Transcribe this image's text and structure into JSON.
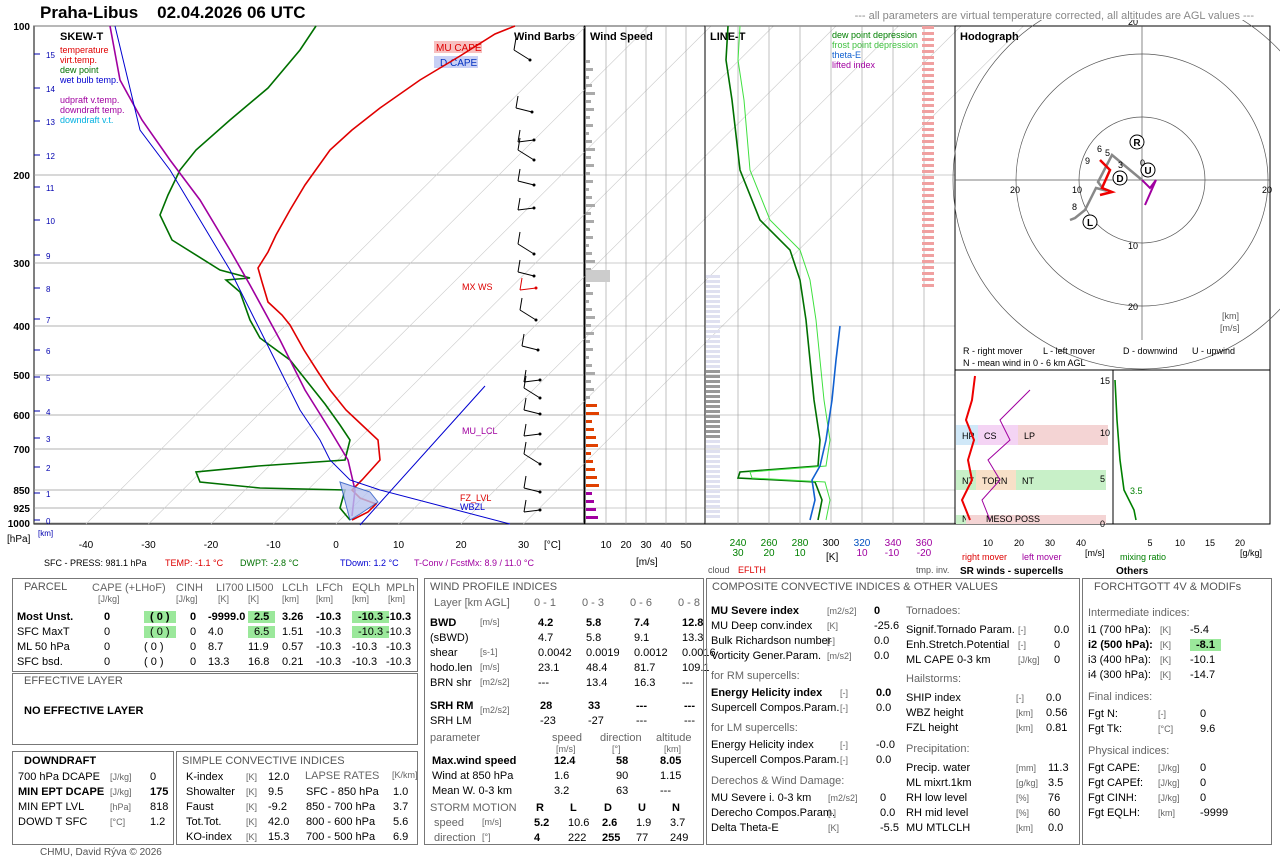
{
  "header": {
    "station": "Praha-Libus",
    "time": "02.04.2026 06 UTC",
    "note": "--- all parameters are virtual temperature corrected, all altitudes are AGL values ---"
  },
  "skewt": {
    "title": "SKEW-T",
    "legend": [
      {
        "label": "temperature",
        "color": "#e00000"
      },
      {
        "label": "virt.temp.",
        "color": "#e00000"
      },
      {
        "label": "dew point",
        "color": "#007000"
      },
      {
        "label": "wet bulb temp.",
        "color": "#0000d0"
      },
      {
        "label": "udpraft v.temp.",
        "color": "#a000a0"
      },
      {
        "label": "downdraft temp.",
        "color": "#a000a0"
      },
      {
        "label": "downdraft v.t.",
        "color": "#00b0e0"
      }
    ],
    "mu_cape": "MU CAPE",
    "d_cape": "D CAPE",
    "mxws": "MX WS",
    "mu_lcl": "MU_LCL",
    "fz_lvl": "FZ_LVL",
    "wbzl": "WBZL",
    "p_ticks": [
      "100",
      "200",
      "300",
      "400",
      "500",
      "600",
      "700",
      "850",
      "925",
      "1000"
    ],
    "km_ticks": [
      "0",
      "1",
      "2",
      "3",
      "4",
      "5",
      "6",
      "7",
      "8",
      "9",
      "10",
      "11",
      "12",
      "13",
      "14",
      "15"
    ],
    "t_ticks": [
      "-40",
      "-30",
      "-20",
      "-10",
      "0",
      "10",
      "20",
      "30"
    ],
    "t_unit": "[°C]",
    "p_unit": "[hPa]",
    "km_unit": "[km]",
    "sfc": {
      "press": "SFC - PRESS: 981.1 hPa",
      "temp": "TEMP: -1.1 °C",
      "dwpt": "DWPT: -2.8 °C",
      "tdown": "TDown: 1.2 °C",
      "tconv": "T-Conv / FcstMx: 8.9 / 11.0 °C"
    }
  },
  "windbarbs": {
    "title": "Wind Barbs"
  },
  "windspeed": {
    "title": "Wind Speed",
    "ticks": [
      "10",
      "20",
      "30",
      "40",
      "50"
    ],
    "unit": "[m/s]"
  },
  "linet": {
    "title": "LINE-T",
    "legend": [
      "dew point depression",
      "frost point depression",
      "theta-E",
      "lifted index"
    ],
    "ticks_top": [
      "240",
      "260",
      "280",
      "300",
      "320",
      "340",
      "360"
    ],
    "ticks_bot": [
      "30",
      "20",
      "10",
      "10",
      "-10",
      "-20"
    ],
    "unit": "[K]",
    "cloud": "cloud",
    "eflth": "EFLTH",
    "tmpinv": "tmp. inv."
  },
  "hodograph": {
    "title": "Hodograph",
    "rings": [
      "20",
      "10",
      "10",
      "20"
    ],
    "labels": [
      "R",
      "L",
      "D",
      "U"
    ],
    "legend1": "R - right mover",
    "legend2": "L - left mover",
    "legend3": "D - downwind",
    "legend4": "U - upwind",
    "legend5": "N - mean wind in 0 - 6 km AGL",
    "unit1": "[km]",
    "unit2": "[m/s]",
    "nums": [
      "9",
      "6",
      "5",
      "8",
      "3",
      "0"
    ]
  },
  "srwinds": {
    "title": "SR winds - supercells",
    "zones": [
      "HP",
      "CS",
      "LP",
      "NT",
      "TORN",
      "NT",
      "NM",
      "MESO POSS"
    ],
    "ticks": [
      "10",
      "20",
      "30",
      "40"
    ],
    "unit": "[m/s]",
    "right": "right mover",
    "left": "left mover",
    "yticks": [
      "0",
      "5",
      "10",
      "15"
    ]
  },
  "others": {
    "title": "Others",
    "ticks": [
      "5",
      "10",
      "15",
      "20"
    ],
    "unit": "[g/kg]",
    "mixing": "mixing ratio",
    "val": "3.5"
  },
  "parcel": {
    "title": "PARCEL",
    "headers": [
      "CAPE (+LHoF)",
      "CINH",
      "LI700",
      "LI500",
      "LCLh",
      "LFCh",
      "EQLh",
      "MPLh"
    ],
    "units": [
      "[J/kg]",
      "[J/kg]",
      "[K]",
      "[K]",
      "[km]",
      "[km]",
      "[km]",
      "[km]"
    ],
    "rows": [
      {
        "name": "Most Unst.",
        "v": [
          "0",
          "( 0 )",
          "0",
          "-9999.0",
          "2.5",
          "3.26",
          "-10.3",
          "-10.3",
          "-10.3"
        ]
      },
      {
        "name": "SFC MaxT",
        "v": [
          "0",
          "( 0 )",
          "0",
          "4.0",
          "6.5",
          "1.51",
          "-10.3",
          "-10.3",
          "-10.3"
        ]
      },
      {
        "name": "ML 50 hPa",
        "v": [
          "0",
          "( 0 )",
          "0",
          "8.7",
          "11.9",
          "0.57",
          "-10.3",
          "-10.3",
          "-10.3"
        ]
      },
      {
        "name": "SFC bsd.",
        "v": [
          "0",
          "( 0 )",
          "0",
          "13.3",
          "16.8",
          "0.21",
          "-10.3",
          "-10.3",
          "-10.3"
        ]
      }
    ]
  },
  "effective": {
    "title": "EFFECTIVE LAYER",
    "value": "NO EFFECTIVE LAYER"
  },
  "downdraft": {
    "title": "DOWNDRAFT",
    "rows": [
      {
        "n": "700 hPa DCAPE",
        "u": "[J/kg]",
        "v": "0"
      },
      {
        "n": "MIN EPT DCAPE",
        "u": "[J/kg]",
        "v": "175"
      },
      {
        "n": "MIN EPT LVL",
        "u": "[hPa]",
        "v": "818"
      },
      {
        "n": "DOWD T SFC",
        "u": "[°C]",
        "v": "1.2"
      }
    ]
  },
  "simple": {
    "title": "SIMPLE CONVECTIVE INDICES",
    "rows": [
      {
        "n": "K-index",
        "u": "[K]",
        "v": "12.0"
      },
      {
        "n": "Showalter",
        "u": "[K]",
        "v": "9.5"
      },
      {
        "n": "Faust",
        "u": "[K]",
        "v": "-9.2"
      },
      {
        "n": "Tot.Tot.",
        "u": "[K]",
        "v": "42.0"
      },
      {
        "n": "KO-index",
        "u": "[K]",
        "v": "15.3"
      }
    ],
    "lapse_title": "LAPSE RATES",
    "lapse_unit": "[K/km]",
    "lapse": [
      {
        "n": "SFC - 850 hPa",
        "v": "1.0"
      },
      {
        "n": "850 - 700 hPa",
        "v": "3.7"
      },
      {
        "n": "800 - 600 hPa",
        "v": "5.6"
      },
      {
        "n": "700 - 500 hPa",
        "v": "6.9"
      }
    ]
  },
  "windprofile": {
    "title": "WIND PROFILE INDICES",
    "layer": "Layer [km AGL]",
    "cols": [
      "0 - 1",
      "0 - 3",
      "0 - 6",
      "0 - 8"
    ],
    "rows": [
      {
        "n": "BWD",
        "u": "[m/s]",
        "v": [
          "4.2",
          "5.8",
          "7.4",
          "12.8"
        ],
        "b": true
      },
      {
        "n": "(sBWD)",
        "u": "",
        "v": [
          "4.7",
          "5.8",
          "9.1",
          "13.3"
        ]
      },
      {
        "n": "shear",
        "u": "[s-1]",
        "v": [
          "0.0042",
          "0.0019",
          "0.0012",
          "0.0016"
        ]
      },
      {
        "n": "hodo.len",
        "u": "[m/s]",
        "v": [
          "23.1",
          "48.4",
          "81.7",
          "109.1"
        ]
      },
      {
        "n": "BRN shr",
        "u": "[m2/s2]",
        "v": [
          "---",
          "13.4",
          "16.3",
          "---"
        ]
      }
    ],
    "srh": [
      {
        "n": "SRH RM",
        "v": [
          "28",
          "33",
          "---",
          "---"
        ],
        "b": true
      },
      {
        "n": "SRH LM",
        "v": [
          "-23",
          "-27",
          "---",
          "---"
        ]
      }
    ],
    "srh_unit": "[m2/s2]",
    "param_hdr": [
      "parameter",
      "speed",
      "direction",
      "altitude"
    ],
    "param_units": [
      "[m/s]",
      "[°]",
      "[km]"
    ],
    "params": [
      {
        "n": "Max.wind speed",
        "v": [
          "12.4",
          "58",
          "8.05"
        ],
        "b": true
      },
      {
        "n": "Wind at 850 hPa",
        "v": [
          "1.6",
          "90",
          "1.15"
        ]
      },
      {
        "n": "Mean W. 0-3 km",
        "v": [
          "3.2",
          "63",
          "---"
        ]
      }
    ],
    "storm_title": "STORM MOTION",
    "storm_cols": [
      "R",
      "L",
      "D",
      "U",
      "N"
    ],
    "storm": [
      {
        "n": "speed",
        "u": "[m/s]",
        "v": [
          "5.2",
          "10.6",
          "2.6",
          "1.9",
          "3.7"
        ]
      },
      {
        "n": "direction",
        "u": "[°]",
        "v": [
          "4",
          "222",
          "255",
          "77",
          "249"
        ]
      }
    ]
  },
  "composite": {
    "title": "COMPOSITE CONVECTIVE INDICES & OTHER VALUES",
    "left": [
      {
        "n": "MU Severe index",
        "u": "[m2/s2]",
        "v": "0",
        "b": true
      },
      {
        "n": "MU Deep conv.index",
        "u": "[K]",
        "v": "-25.6"
      },
      {
        "n": "Bulk Richardson number",
        "u": "[-]",
        "v": "0.0"
      },
      {
        "n": "Vorticity Gener.Param.",
        "u": "[m/s2]",
        "v": "0.0"
      }
    ],
    "rm_title": "for RM supercells:",
    "rm": [
      {
        "n": "Energy Helicity index",
        "u": "[-]",
        "v": "0.0",
        "b": true
      },
      {
        "n": "Supercell Compos.Param.",
        "u": "[-]",
        "v": "0.0"
      }
    ],
    "lm_title": "for LM supercells:",
    "lm": [
      {
        "n": "Energy Helicity index",
        "u": "[-]",
        "v": "-0.0"
      },
      {
        "n": "Supercell Compos.Param.",
        "u": "[-]",
        "v": "0.0"
      }
    ],
    "der_title": "Derechos & Wind Damage:",
    "der": [
      {
        "n": "MU Severe i. 0-3 km",
        "u": "[m2/s2]",
        "v": "0"
      },
      {
        "n": "Derecho Compos.Param.",
        "u": "[-]",
        "v": "0.0"
      },
      {
        "n": "Delta Theta-E",
        "u": "[K]",
        "v": "-5.5"
      }
    ],
    "tor_title": "Tornadoes:",
    "tor": [
      {
        "n": "Signif.Tornado Param.",
        "u": "[-]",
        "v": "0.0"
      },
      {
        "n": "Enh.Stretch.Potential",
        "u": "[-]",
        "v": "0"
      },
      {
        "n": "ML CAPE 0-3 km",
        "u": "[J/kg]",
        "v": "0"
      }
    ],
    "hail_title": "Hailstorms:",
    "hail": [
      {
        "n": "SHIP index",
        "u": "[-]",
        "v": "0.0"
      },
      {
        "n": "WBZ height",
        "u": "[km]",
        "v": "0.56"
      },
      {
        "n": "FZL height",
        "u": "[km]",
        "v": "0.81"
      }
    ],
    "prec_title": "Precipitation:",
    "prec": [
      {
        "n": "Precip. water",
        "u": "[mm]",
        "v": "11.3"
      },
      {
        "n": "ML mixrt.1km",
        "u": "[g/kg]",
        "v": "3.5"
      },
      {
        "n": "RH low level",
        "u": "[%]",
        "v": "76"
      },
      {
        "n": "RH mid level",
        "u": "[%]",
        "v": "60"
      },
      {
        "n": "MU MTLCLH",
        "u": "[km]",
        "v": "0.0"
      }
    ]
  },
  "forchtgott": {
    "title": "FORCHTGOTT 4V & MODIFs",
    "inter_title": "Intermediate indices:",
    "inter": [
      {
        "n": "i1 (700 hPa):",
        "u": "[K]",
        "v": "-5.4"
      },
      {
        "n": "i2 (500 hPa):",
        "u": "[K]",
        "v": "-8.1",
        "b": true
      },
      {
        "n": "i3 (400 hPa):",
        "u": "[K]",
        "v": "-10.1"
      },
      {
        "n": "i4 (300 hPa):",
        "u": "[K]",
        "v": "-14.7"
      }
    ],
    "final_title": "Final indices:",
    "final": [
      {
        "n": "Fgt N:",
        "u": "[-]",
        "v": "0"
      },
      {
        "n": "Fgt Tk:",
        "u": "[°C]",
        "v": "9.6"
      }
    ],
    "phys_title": "Physical indices:",
    "phys": [
      {
        "n": "Fgt CAPE:",
        "u": "[J/kg]",
        "v": "0"
      },
      {
        "n": "Fgt CAPEf:",
        "u": "[J/kg]",
        "v": "0"
      },
      {
        "n": "Fgt CINH:",
        "u": "[J/kg]",
        "v": "0"
      },
      {
        "n": "Fgt EQLH:",
        "u": "[km]",
        "v": "-9999"
      }
    ]
  },
  "footer": "CHMU, David Rýva © 2026",
  "chart_data": {
    "type": "line",
    "title": "Praha-Libus 02.04.2026 06 UTC",
    "xlabel": "[°C]",
    "ylabel": "[hPa]",
    "pressure_levels": [
      1000,
      925,
      850,
      700,
      600,
      500,
      400,
      300,
      200,
      100
    ],
    "temperature_sfc": -1.1,
    "dewpoint_sfc": -2.8,
    "series": [
      {
        "name": "temperature"
      },
      {
        "name": "dew point"
      },
      {
        "name": "wet bulb temp."
      },
      {
        "name": "udpraft v.temp."
      }
    ]
  }
}
